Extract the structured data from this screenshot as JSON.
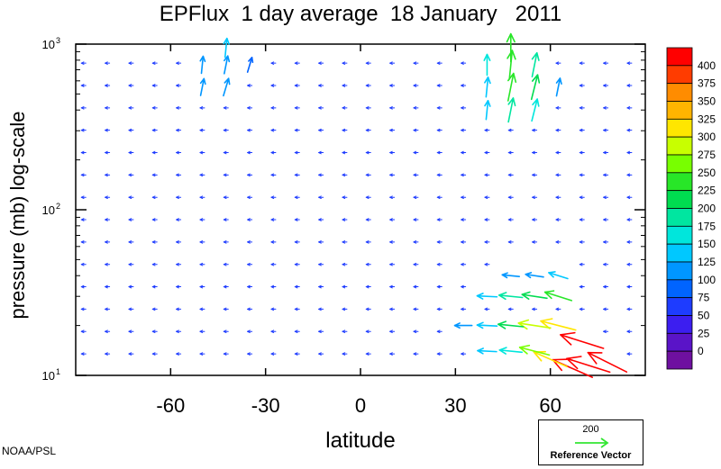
{
  "title": "EPFlux  1 day average  18 January   2011",
  "credit": "NOAA/PSL",
  "chart_data": {
    "type": "quiver",
    "title": "EPFlux  1 day average  18 January   2011",
    "xlabel": "latitude",
    "ylabel": "pressure (mb)  log-scale",
    "xlim": [
      -90,
      90
    ],
    "ylim_pressure": [
      1000,
      10
    ],
    "y_scale": "log",
    "x_ticks": [
      -60,
      -30,
      0,
      30,
      60
    ],
    "x_tick_labels": [
      "-60",
      "-30",
      "0",
      "30",
      "60"
    ],
    "y_ticks": [
      1000,
      100,
      10
    ],
    "y_tick_labels": [
      {
        "base": "10",
        "exp": "3"
      },
      {
        "base": "10",
        "exp": "2"
      },
      {
        "base": "10",
        "exp": "1"
      }
    ],
    "grid_latitudes": [
      -87.5,
      -80,
      -72.5,
      -65,
      -57.5,
      -50,
      -42.5,
      -35,
      -27.5,
      -20,
      -12.5,
      -5,
      2.5,
      10,
      17.5,
      25,
      32.5,
      40,
      47.5,
      55,
      62.5,
      70,
      77.5,
      85
    ],
    "vectors": [
      {
        "lat": 67,
        "p": 11,
        "mag": 400,
        "u": -0.9,
        "v": 0.4
      },
      {
        "lat": 72,
        "p": 11.5,
        "mag": 420,
        "u": -0.95,
        "v": 0.3
      },
      {
        "lat": 78,
        "p": 12,
        "mag": 400,
        "u": -0.9,
        "v": 0.45
      },
      {
        "lat": 60,
        "p": 12.5,
        "mag": 320,
        "u": -0.9,
        "v": 0.4
      },
      {
        "lat": 55,
        "p": 14,
        "mag": 260,
        "u": -0.97,
        "v": 0.25
      },
      {
        "lat": 47.5,
        "p": 14,
        "mag": 170,
        "u": -1,
        "v": 0.1
      },
      {
        "lat": 40,
        "p": 14,
        "mag": 130,
        "u": -1,
        "v": 0.05
      },
      {
        "lat": 70,
        "p": 16,
        "mag": 420,
        "u": -0.95,
        "v": 0.3
      },
      {
        "lat": 62.5,
        "p": 20,
        "mag": 320,
        "u": -0.97,
        "v": 0.25
      },
      {
        "lat": 55,
        "p": 20,
        "mag": 280,
        "u": -1,
        "v": 0.15
      },
      {
        "lat": 47.5,
        "p": 20,
        "mag": 200,
        "u": -1,
        "v": 0.1
      },
      {
        "lat": 40,
        "p": 20,
        "mag": 140,
        "u": -1,
        "v": 0.05
      },
      {
        "lat": 32.5,
        "p": 20,
        "mag": 110,
        "u": -1,
        "v": 0
      },
      {
        "lat": 62.5,
        "p": 30,
        "mag": 230,
        "u": -0.95,
        "v": 0.3
      },
      {
        "lat": 55,
        "p": 30,
        "mag": 200,
        "u": -1,
        "v": 0.15
      },
      {
        "lat": 47.5,
        "p": 30,
        "mag": 180,
        "u": -1,
        "v": 0.1
      },
      {
        "lat": 40,
        "p": 30,
        "mag": 140,
        "u": -1,
        "v": 0.05
      },
      {
        "lat": 62.5,
        "p": 40,
        "mag": 140,
        "u": -0.95,
        "v": 0.3
      },
      {
        "lat": 55,
        "p": 40,
        "mag": 120,
        "u": -1,
        "v": 0.15
      },
      {
        "lat": 47.5,
        "p": 40,
        "mag": 110,
        "u": -1,
        "v": 0.1
      },
      {
        "lat": 47.5,
        "p": 400,
        "mag": 190,
        "u": 0.2,
        "v": 1
      },
      {
        "lat": 55,
        "p": 400,
        "mag": 170,
        "u": 0.25,
        "v": 1
      },
      {
        "lat": 40,
        "p": 400,
        "mag": 130,
        "u": 0.1,
        "v": 1
      },
      {
        "lat": 47.5,
        "p": 550,
        "mag": 230,
        "u": 0.2,
        "v": 1
      },
      {
        "lat": 55,
        "p": 550,
        "mag": 200,
        "u": 0.25,
        "v": 1
      },
      {
        "lat": 62.5,
        "p": 550,
        "mag": 120,
        "u": 0.2,
        "v": 1
      },
      {
        "lat": 40,
        "p": 550,
        "mag": 140,
        "u": 0.1,
        "v": 1
      },
      {
        "lat": 47.5,
        "p": 750,
        "mag": 240,
        "u": 0.1,
        "v": 1
      },
      {
        "lat": 55,
        "p": 750,
        "mag": 190,
        "u": 0.2,
        "v": 1
      },
      {
        "lat": 40,
        "p": 750,
        "mag": 150,
        "u": 0,
        "v": 1
      },
      {
        "lat": 47.5,
        "p": 950,
        "mag": 230,
        "u": 0,
        "v": 1
      },
      {
        "lat": -42.5,
        "p": 550,
        "mag": 120,
        "u": 0.3,
        "v": 1
      },
      {
        "lat": -50,
        "p": 550,
        "mag": 110,
        "u": 0.2,
        "v": 1
      },
      {
        "lat": -42.5,
        "p": 750,
        "mag": 120,
        "u": 0.2,
        "v": 1
      },
      {
        "lat": -50,
        "p": 750,
        "mag": 110,
        "u": 0.1,
        "v": 1
      },
      {
        "lat": -35,
        "p": 750,
        "mag": 90,
        "u": 0.3,
        "v": 1
      },
      {
        "lat": -42.5,
        "p": 950,
        "mag": 130,
        "u": 0.1,
        "v": 1
      }
    ],
    "background_vector": {
      "mag": 50,
      "u": -1,
      "v": 0
    },
    "colorbar": {
      "levels": [
        400,
        375,
        350,
        325,
        300,
        275,
        250,
        225,
        200,
        175,
        150,
        125,
        100,
        75,
        50,
        25,
        0
      ],
      "colors": [
        "#ff0000",
        "#ff3c00",
        "#ff8c00",
        "#ffb400",
        "#ffe600",
        "#c8ff00",
        "#78ff00",
        "#28e628",
        "#00dc50",
        "#00e6a0",
        "#00e6dc",
        "#00c8ff",
        "#0096ff",
        "#0064ff",
        "#1e3cff",
        "#3c1ef0",
        "#5a14c8",
        "#6e10a0"
      ]
    },
    "reference_vector": {
      "value": "200",
      "label": "Reference Vector",
      "color": "#32e632"
    }
  }
}
